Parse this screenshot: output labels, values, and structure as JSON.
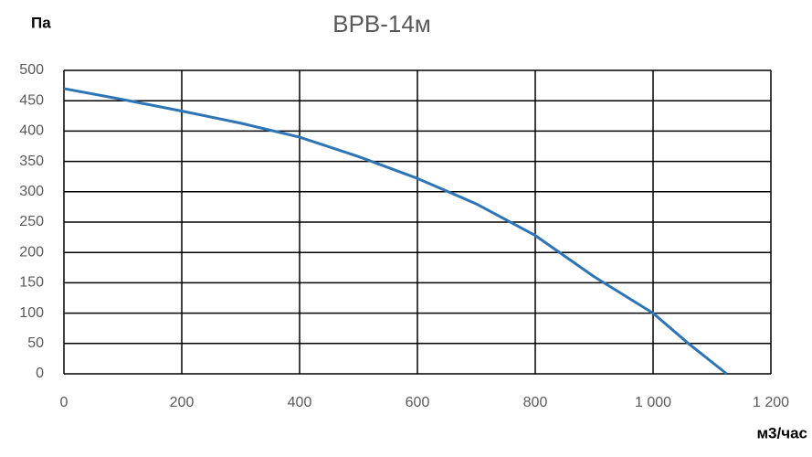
{
  "chart_data": {
    "type": "line",
    "title": "ВРВ-14м",
    "y_label": "Па",
    "x_label": "м3/час",
    "x": [
      0,
      100,
      200,
      300,
      400,
      500,
      600,
      700,
      800,
      900,
      1000,
      1060,
      1125
    ],
    "series": [
      {
        "name": "ВРВ-14м",
        "color": "#2e75b6",
        "values": [
          470,
          452,
          433,
          413,
          390,
          358,
          322,
          280,
          228,
          160,
          100,
          50,
          0
        ]
      }
    ],
    "xlim": [
      0,
      1200
    ],
    "xticks": [
      0,
      200,
      400,
      600,
      800,
      {
        "value": 1000,
        "label": "1 000"
      },
      {
        "value": 1200,
        "label": "1 200"
      }
    ],
    "ylim": [
      0,
      500
    ],
    "yticks": [
      0,
      50,
      100,
      150,
      200,
      250,
      300,
      350,
      400,
      450,
      500
    ],
    "grid": true
  }
}
